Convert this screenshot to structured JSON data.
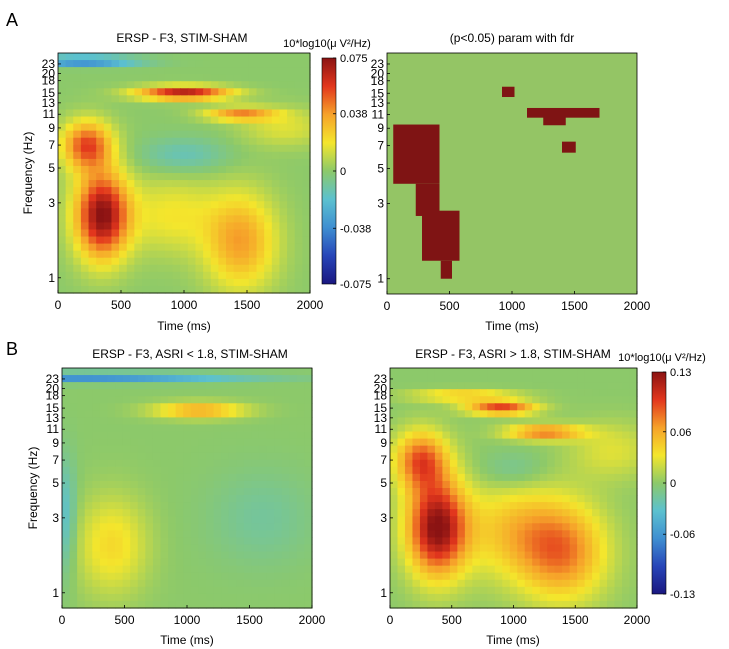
{
  "panel_labels": [
    "A",
    "B"
  ],
  "colors": {
    "colormap_jet": [
      "#1a1780",
      "#2745b8",
      "#3f8fd1",
      "#5cc1cf",
      "#8cc96a",
      "#f4e62c",
      "#f6a22a",
      "#e2361d",
      "#8b1313"
    ],
    "sig_background": "#94c565",
    "sig_mask": "#7f1414"
  },
  "chart_data": [
    {
      "id": "A-left",
      "type": "heatmap",
      "title": "ERSP - F3, STIM-SHAM",
      "xlabel": "Time (ms)",
      "ylabel": "Frequency (Hz)",
      "xlim": [
        0,
        2000
      ],
      "ylim_hz": [
        0.8,
        27
      ],
      "xticks": [
        "0",
        "500",
        "1000",
        "1500",
        "2000"
      ],
      "yticks": [
        "1",
        "3",
        "5",
        "7",
        "9",
        "11",
        "13",
        "15",
        "18",
        "20",
        "23"
      ],
      "colorbar": {
        "label": "10*log10(μ V²/Hz)",
        "range": [
          -0.075,
          0.075
        ],
        "ticks": [
          "0.075",
          "0.038",
          "0",
          "-0.038",
          "-0.075"
        ]
      },
      "blobs": [
        {
          "t": 350,
          "f": 2.5,
          "st": 150,
          "sf": 0.45,
          "a": 1.0
        },
        {
          "t": 230,
          "f": 7.0,
          "st": 140,
          "sf": 0.25,
          "a": 0.7
        },
        {
          "t": 1000,
          "f": 15.0,
          "st": 260,
          "sf": 0.07,
          "a": 0.9
        },
        {
          "t": 1450,
          "f": 11.0,
          "st": 200,
          "sf": 0.07,
          "a": 0.55
        },
        {
          "t": 1450,
          "f": 1.7,
          "st": 200,
          "sf": 0.5,
          "a": 0.5
        },
        {
          "t": 900,
          "f": 2.5,
          "st": 250,
          "sf": 0.4,
          "a": 0.25
        },
        {
          "t": 1800,
          "f": 9.0,
          "st": 250,
          "sf": 0.2,
          "a": 0.2
        },
        {
          "t": 200,
          "f": 24.0,
          "st": 300,
          "sf": 0.05,
          "a": -0.6
        },
        {
          "t": 1000,
          "f": 6.0,
          "st": 250,
          "sf": 0.18,
          "a": -0.2
        }
      ]
    },
    {
      "id": "A-right",
      "type": "heatmap",
      "title": "(p<0.05) param with fdr",
      "xlabel": "Time (ms)",
      "ylabel": "",
      "xlim": [
        0,
        2000
      ],
      "ylim_hz": [
        0.8,
        27
      ],
      "xticks": [
        "0",
        "500",
        "1000",
        "1500",
        "2000"
      ],
      "yticks": [
        "1",
        "3",
        "5",
        "7",
        "9",
        "11",
        "13",
        "15",
        "18",
        "20",
        "23"
      ],
      "significant_regions": [
        {
          "t0": 50,
          "t1": 420,
          "f0": 4.0,
          "f1": 9.5
        },
        {
          "t0": 230,
          "t1": 420,
          "f0": 2.5,
          "f1": 4.0
        },
        {
          "t0": 280,
          "t1": 580,
          "f0": 1.3,
          "f1": 2.7
        },
        {
          "t0": 430,
          "t1": 520,
          "f0": 1.0,
          "f1": 1.3
        },
        {
          "t0": 920,
          "t1": 1020,
          "f0": 14.2,
          "f1": 16.5
        },
        {
          "t0": 1120,
          "t1": 1700,
          "f0": 10.5,
          "f1": 12.1
        },
        {
          "t0": 1250,
          "t1": 1430,
          "f0": 9.4,
          "f1": 10.6
        },
        {
          "t0": 1400,
          "t1": 1510,
          "f0": 6.3,
          "f1": 7.4
        }
      ]
    },
    {
      "id": "B-left",
      "type": "heatmap",
      "title": "ERSP - F3, ASRI < 1.8, STIM-SHAM",
      "xlabel": "Time (ms)",
      "ylabel": "Frequency (Hz)",
      "xlim": [
        0,
        2000
      ],
      "ylim_hz": [
        0.8,
        27
      ],
      "xticks": [
        "0",
        "500",
        "1000",
        "1500",
        "2000"
      ],
      "yticks": [
        "1",
        "3",
        "5",
        "7",
        "9",
        "11",
        "13",
        "15",
        "18",
        "20",
        "23"
      ],
      "blobs": [
        {
          "t": 1100,
          "f": 14.5,
          "st": 260,
          "sf": 0.08,
          "a": 0.5
        },
        {
          "t": 400,
          "f": 2.0,
          "st": 200,
          "sf": 0.5,
          "a": 0.3
        },
        {
          "t": 150,
          "f": 23.5,
          "st": 900,
          "sf": 0.05,
          "a": -0.5
        },
        {
          "t": 30,
          "f": 3.0,
          "st": 60,
          "sf": 0.6,
          "a": -0.25
        },
        {
          "t": 1600,
          "f": 3.0,
          "st": 300,
          "sf": 0.5,
          "a": -0.12
        }
      ]
    },
    {
      "id": "B-right",
      "type": "heatmap",
      "title": "ERSP - F3, ASRI > 1.8, STIM-SHAM",
      "xlabel": "Time (ms)",
      "ylabel": "",
      "xlim": [
        0,
        2000
      ],
      "ylim_hz": [
        0.8,
        27
      ],
      "xticks": [
        "0",
        "500",
        "1000",
        "1500",
        "2000"
      ],
      "yticks": [
        "1",
        "3",
        "5",
        "7",
        "9",
        "11",
        "13",
        "15",
        "18",
        "20",
        "23"
      ],
      "colorbar": {
        "label": "10*log10(μ V²/Hz)",
        "range": [
          -0.13,
          0.13
        ],
        "ticks": [
          "0.13",
          "0.06",
          "0",
          "-0.06",
          "-0.13"
        ]
      },
      "blobs": [
        {
          "t": 380,
          "f": 2.6,
          "st": 170,
          "sf": 0.5,
          "a": 1.0
        },
        {
          "t": 250,
          "f": 7.0,
          "st": 150,
          "sf": 0.3,
          "a": 0.65
        },
        {
          "t": 900,
          "f": 15.0,
          "st": 200,
          "sf": 0.07,
          "a": 0.75
        },
        {
          "t": 1250,
          "f": 10.5,
          "st": 220,
          "sf": 0.08,
          "a": 0.6
        },
        {
          "t": 1400,
          "f": 1.8,
          "st": 250,
          "sf": 0.5,
          "a": 0.55
        },
        {
          "t": 1000,
          "f": 2.5,
          "st": 300,
          "sf": 0.5,
          "a": 0.35
        },
        {
          "t": 1800,
          "f": 8.0,
          "st": 250,
          "sf": 0.3,
          "a": 0.2
        },
        {
          "t": 600,
          "f": 18.0,
          "st": 300,
          "sf": 0.06,
          "a": 0.4
        },
        {
          "t": 1000,
          "f": 6.0,
          "st": 200,
          "sf": 0.2,
          "a": -0.15
        }
      ]
    }
  ]
}
